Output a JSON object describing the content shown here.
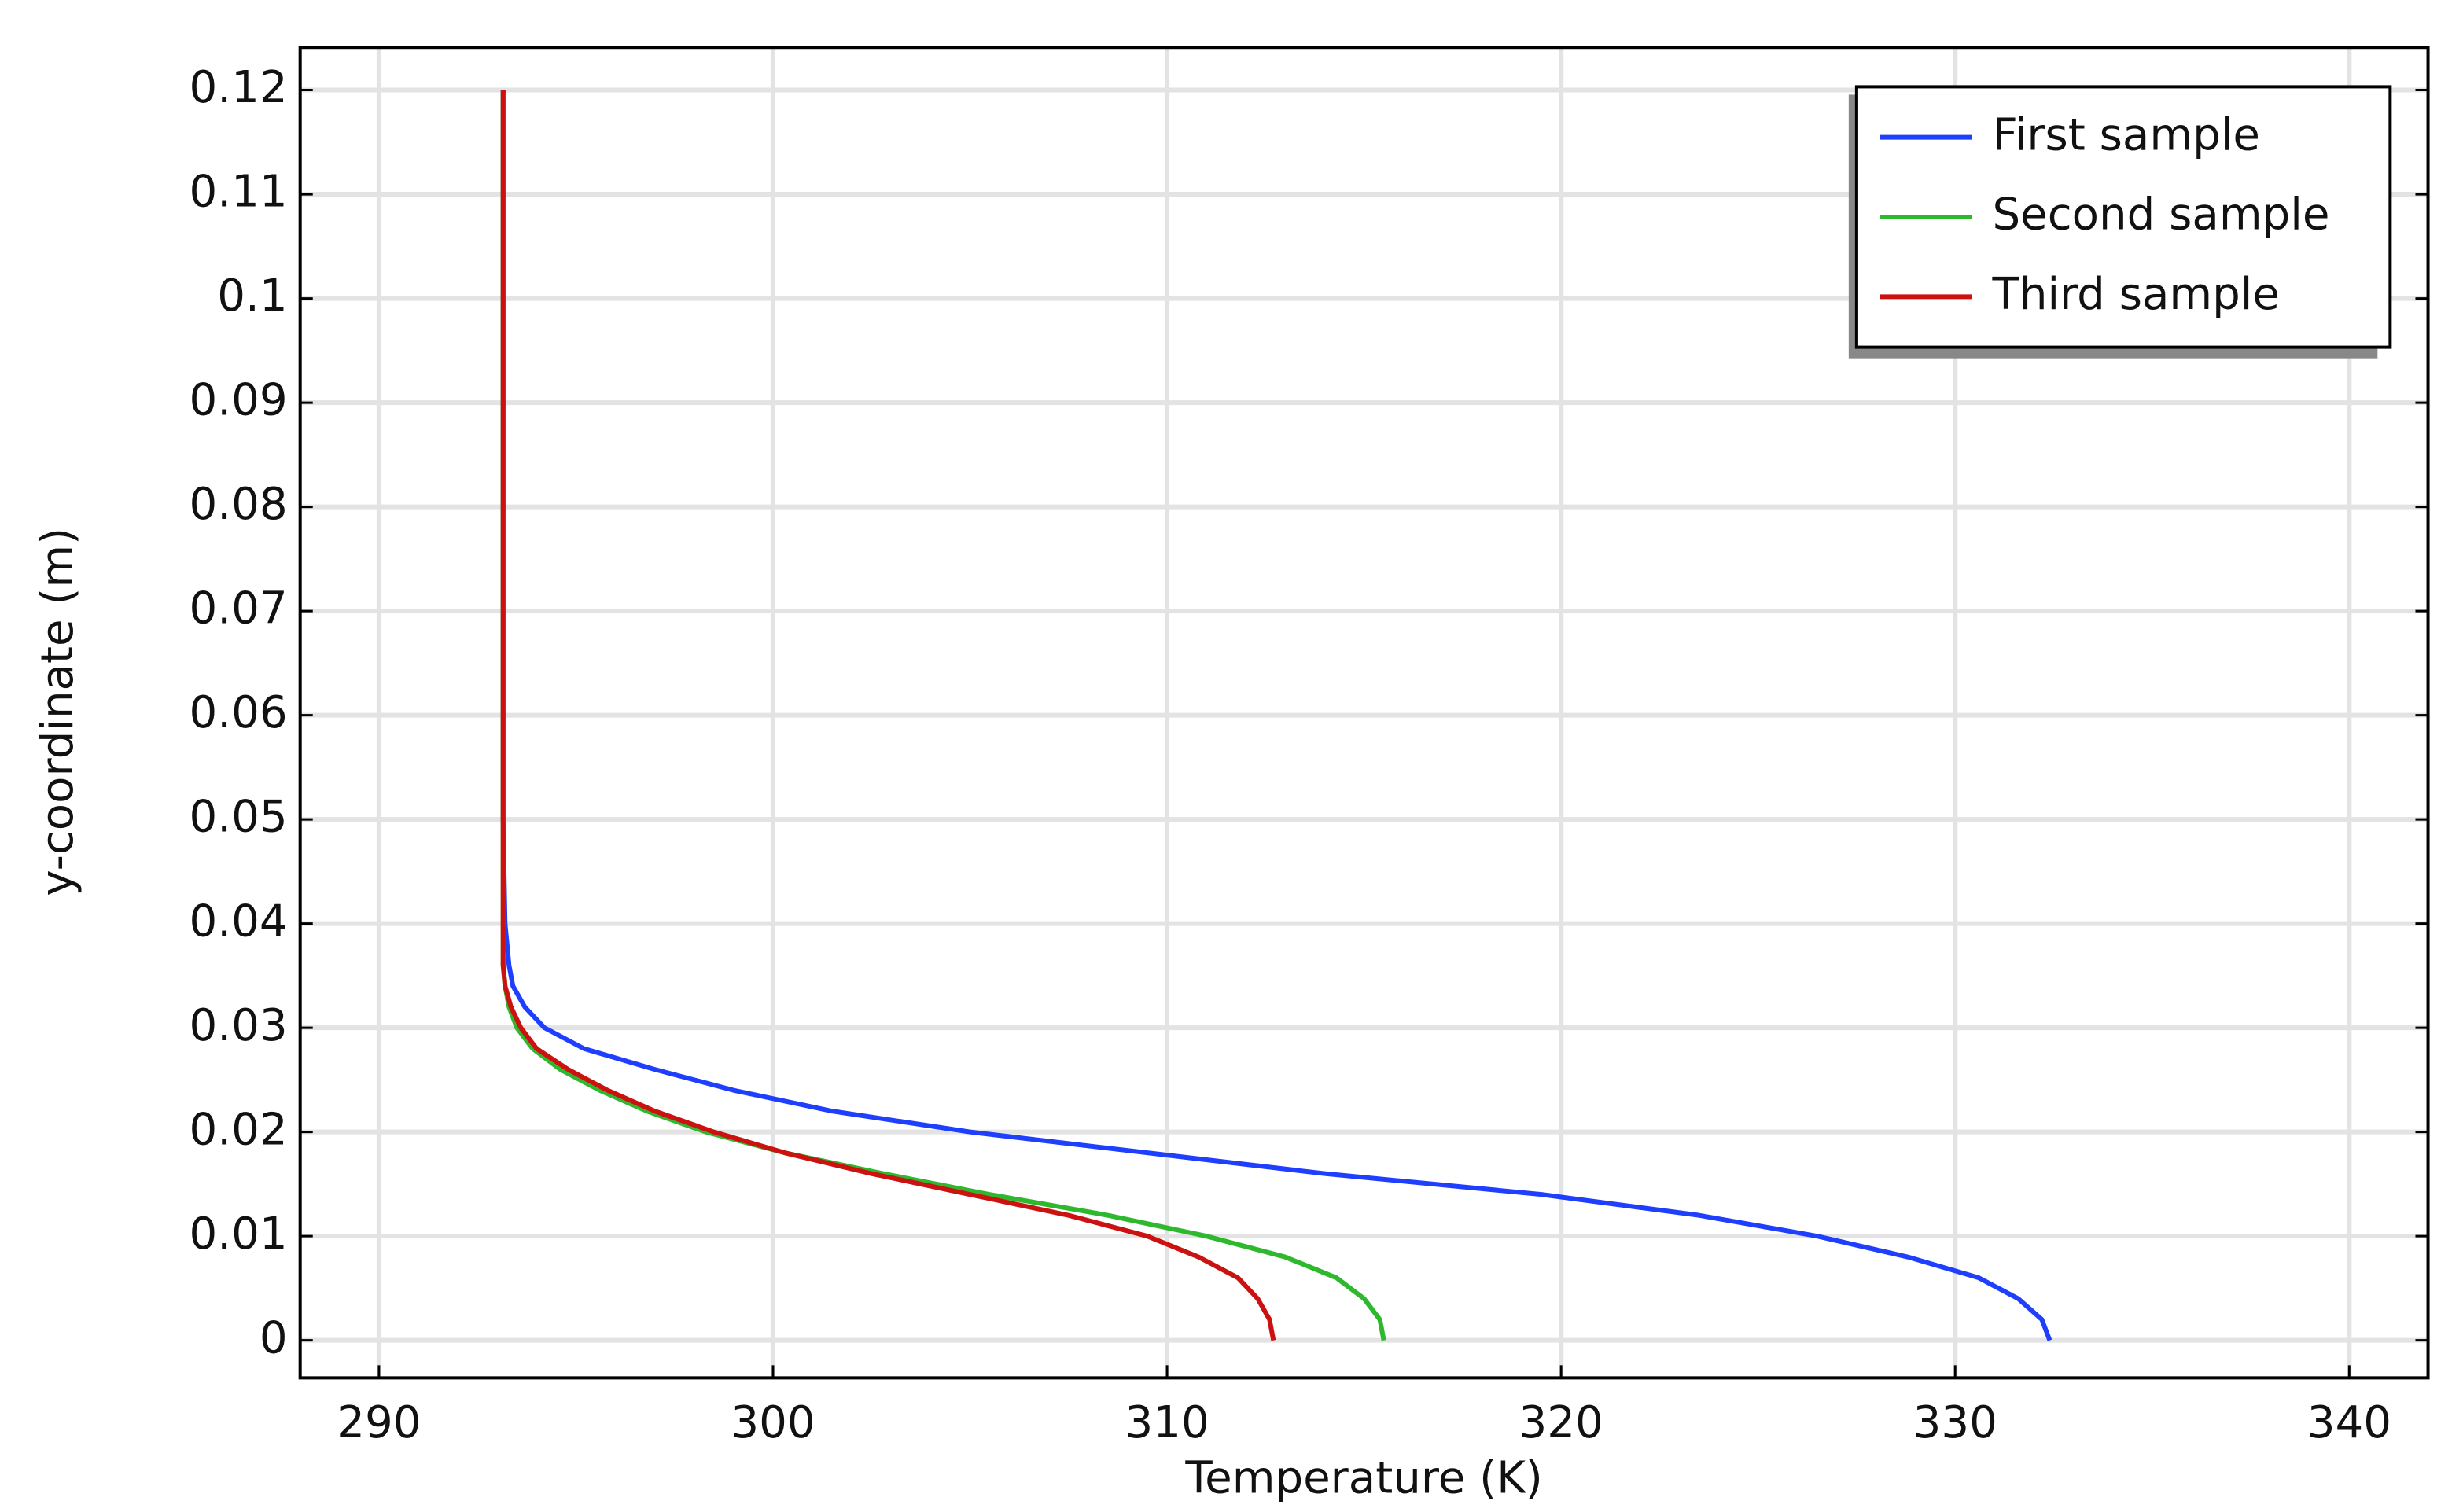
{
  "chart_data": {
    "type": "line",
    "x_label": "Temperature (K)",
    "y_label": "y-coordinate (m)",
    "y": [
      0,
      0.002,
      0.004,
      0.006,
      0.008,
      0.01,
      0.012,
      0.014,
      0.016,
      0.018,
      0.02,
      0.022,
      0.024,
      0.026,
      0.028,
      0.03,
      0.032,
      0.034,
      0.036,
      0.04,
      0.05,
      0.08,
      0.12
    ],
    "series": [
      {
        "name": "First sample",
        "color": "#1f3fff",
        "values": [
          332.4,
          332.2,
          331.6,
          330.6,
          328.8,
          326.5,
          323.5,
          319.5,
          314,
          309.5,
          305,
          301.5,
          299,
          297,
          295.2,
          294.2,
          293.7,
          293.4,
          293.3,
          293.2,
          293.15,
          293.15,
          293.15
        ]
      },
      {
        "name": "Second sample",
        "color": "#2db82d",
        "values": [
          315.5,
          315.4,
          315,
          314.3,
          313,
          311,
          308.5,
          305.5,
          302.8,
          300.3,
          298.3,
          296.8,
          295.6,
          294.6,
          293.9,
          293.5,
          293.3,
          293.2,
          293.15,
          293.15,
          293.15,
          293.15,
          293.15
        ]
      },
      {
        "name": "Third sample",
        "color": "#cc1111",
        "values": [
          312.7,
          312.6,
          312.3,
          311.8,
          310.8,
          309.5,
          307.5,
          305,
          302.5,
          300.3,
          298.5,
          297,
          295.8,
          294.8,
          294,
          293.6,
          293.35,
          293.2,
          293.15,
          293.15,
          293.15,
          293.15,
          293.15
        ]
      }
    ],
    "xlim": [
      288,
      342
    ],
    "xticks": [
      290,
      300,
      310,
      320,
      330,
      340
    ],
    "ylim": [
      -0.0036,
      0.1241
    ],
    "yticks": [
      0,
      0.01,
      0.02,
      0.03,
      0.04,
      0.05,
      0.06,
      0.07,
      0.08,
      0.09,
      0.1,
      0.11,
      0.12
    ],
    "grid": true,
    "legend": "upper right"
  }
}
